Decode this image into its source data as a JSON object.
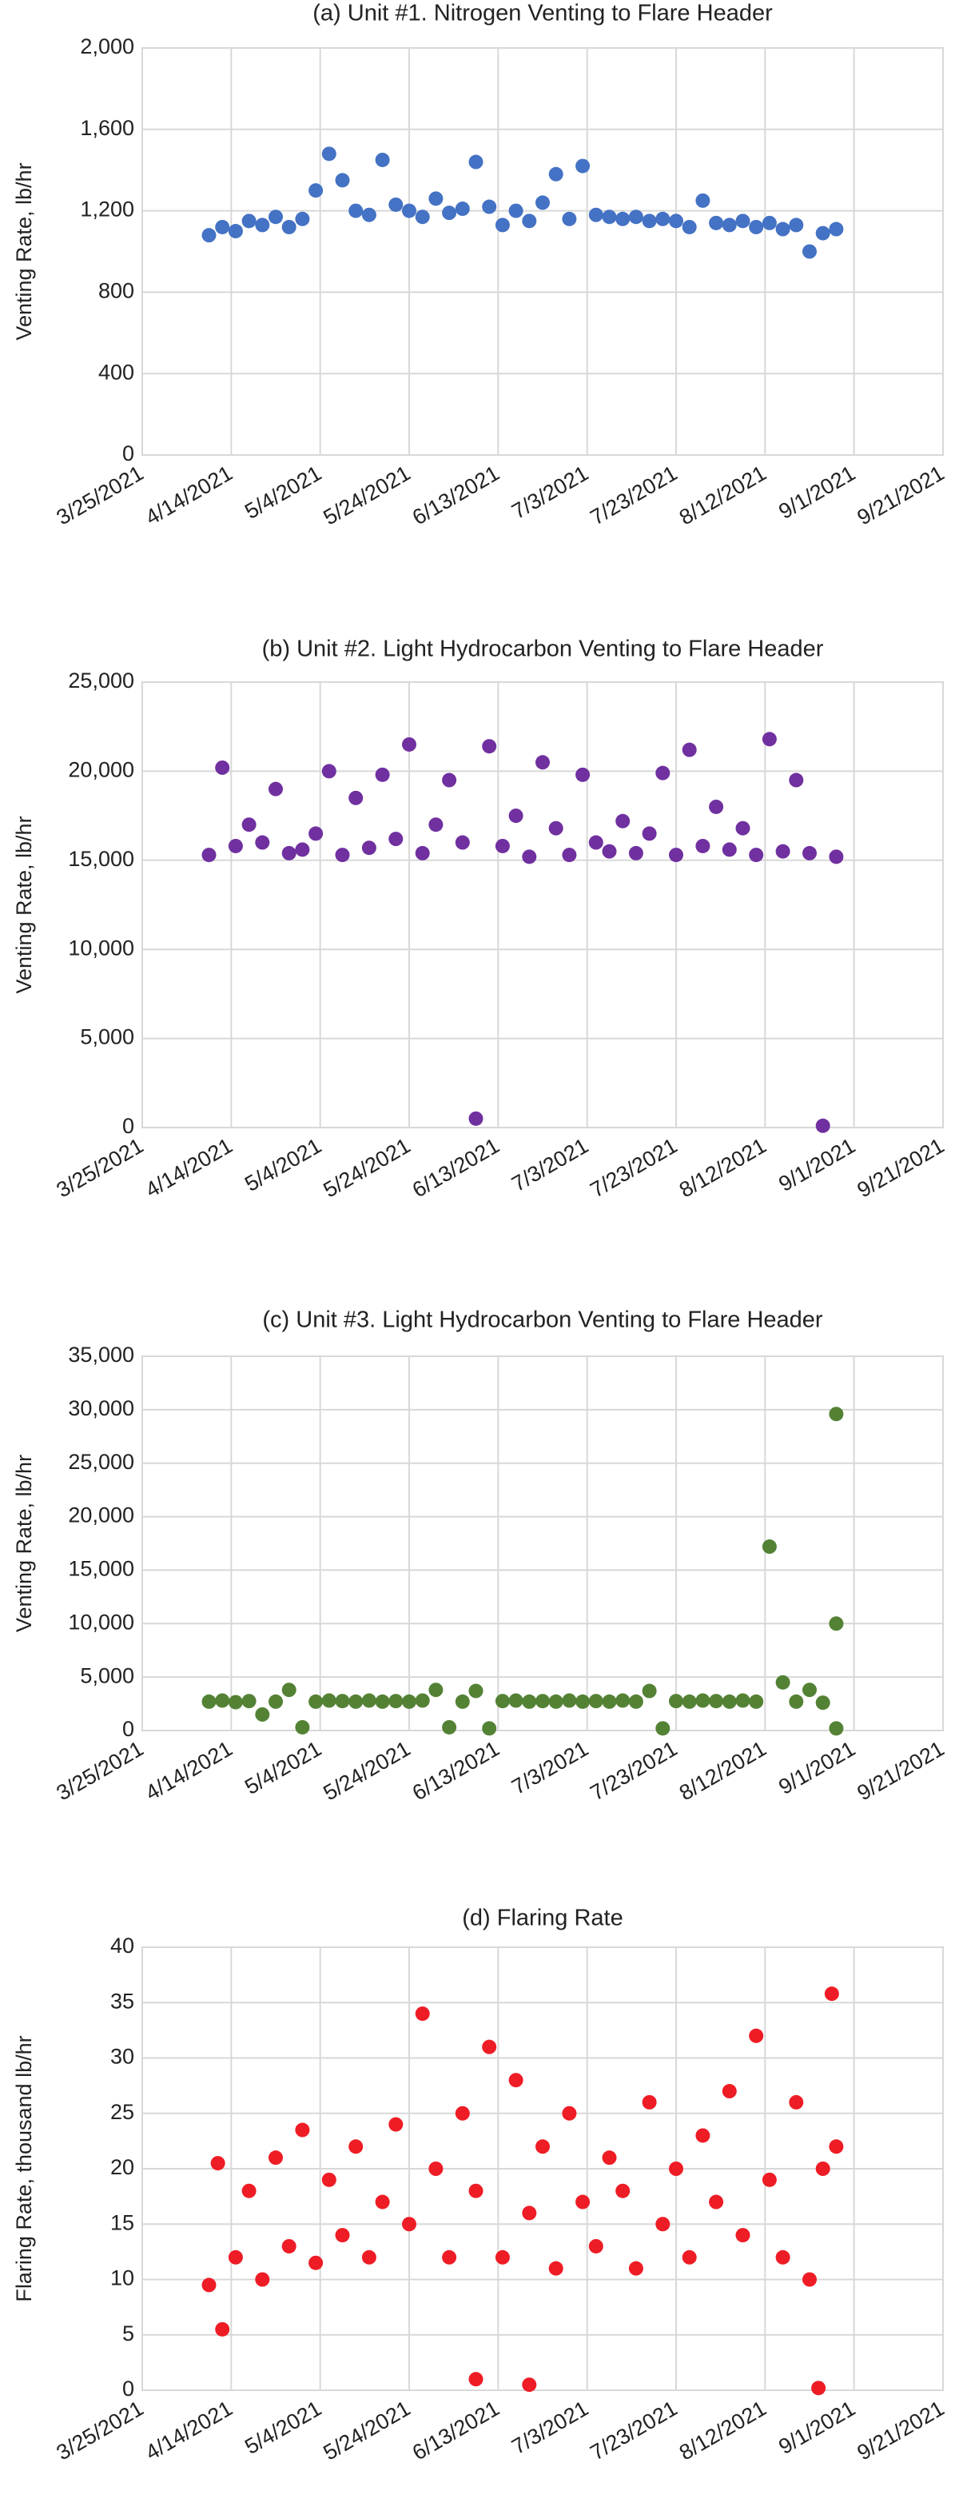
{
  "chart_data": [
    {
      "type": "scatter",
      "title": "(a) Unit #1. Nitrogen Venting to Flare Header",
      "y_label": "Venting Rate, lb/hr",
      "color": "#4472c4",
      "grid": true,
      "x": [
        "4/9/2021",
        "4/12/2021",
        "4/15/2021",
        "4/18/2021",
        "4/21/2021",
        "4/24/2021",
        "4/27/2021",
        "4/30/2021",
        "5/3/2021",
        "5/6/2021",
        "5/9/2021",
        "5/12/2021",
        "5/15/2021",
        "5/18/2021",
        "5/21/2021",
        "5/24/2021",
        "5/27/2021",
        "5/30/2021",
        "6/2/2021",
        "6/5/2021",
        "6/8/2021",
        "6/11/2021",
        "6/14/2021",
        "6/17/2021",
        "6/20/2021",
        "6/23/2021",
        "6/26/2021",
        "6/29/2021",
        "7/2/2021",
        "7/5/2021",
        "7/8/2021",
        "7/11/2021",
        "7/14/2021",
        "7/17/2021",
        "7/20/2021",
        "7/23/2021",
        "7/26/2021",
        "7/29/2021",
        "8/1/2021",
        "8/4/2021",
        "8/7/2021",
        "8/10/2021",
        "8/13/2021",
        "8/16/2021",
        "8/19/2021",
        "8/22/2021",
        "8/25/2021",
        "8/28/2021"
      ],
      "values": [
        1080,
        1120,
        1100,
        1150,
        1130,
        1170,
        1120,
        1160,
        1300,
        1480,
        1350,
        1200,
        1180,
        1450,
        1230,
        1200,
        1170,
        1260,
        1190,
        1210,
        1440,
        1220,
        1130,
        1200,
        1150,
        1240,
        1380,
        1160,
        1420,
        1180,
        1170,
        1160,
        1170,
        1150,
        1160,
        1150,
        1120,
        1250,
        1140,
        1130,
        1150,
        1120,
        1140,
        1110,
        1130,
        1000,
        1090,
        1110
      ],
      "xlim": [
        "3/25/2021",
        "9/21/2021"
      ],
      "xticks": [
        "3/25/2021",
        "4/14/2021",
        "5/4/2021",
        "5/24/2021",
        "6/13/2021",
        "7/3/2021",
        "7/23/2021",
        "8/12/2021",
        "9/1/2021",
        "9/21/2021"
      ],
      "ylim": [
        0,
        2000
      ],
      "yticks": [
        0,
        400,
        800,
        {
          "value": 1200,
          "label": "1,200"
        },
        {
          "value": 1600,
          "label": "1,600"
        },
        {
          "value": 2000,
          "label": "2,000"
        }
      ]
    },
    {
      "type": "scatter",
      "title": "(b) Unit #2. Light Hydrocarbon Venting to Flare Header",
      "y_label": "Venting Rate, lb/hr",
      "color": "#7030a0",
      "grid": true,
      "x": [
        "4/9/2021",
        "4/12/2021",
        "4/15/2021",
        "4/18/2021",
        "4/21/2021",
        "4/24/2021",
        "4/27/2021",
        "4/30/2021",
        "5/3/2021",
        "5/6/2021",
        "5/9/2021",
        "5/12/2021",
        "5/15/2021",
        "5/18/2021",
        "5/21/2021",
        "5/24/2021",
        "5/27/2021",
        "5/30/2021",
        "6/2/2021",
        "6/5/2021",
        "6/8/2021",
        "6/11/2021",
        "6/14/2021",
        "6/17/2021",
        "6/20/2021",
        "6/23/2021",
        "6/26/2021",
        "6/29/2021",
        "7/2/2021",
        "7/5/2021",
        "7/8/2021",
        "7/11/2021",
        "7/14/2021",
        "7/17/2021",
        "7/20/2021",
        "7/23/2021",
        "7/26/2021",
        "7/29/2021",
        "8/1/2021",
        "8/4/2021",
        "8/7/2021",
        "8/10/2021",
        "8/13/2021",
        "8/16/2021",
        "8/19/2021",
        "8/22/2021",
        "8/25/2021",
        "8/28/2021"
      ],
      "values": [
        15300,
        20200,
        15800,
        17000,
        16000,
        19000,
        15400,
        15600,
        16500,
        20000,
        15300,
        18500,
        15700,
        19800,
        16200,
        21500,
        15400,
        17000,
        19500,
        16000,
        500,
        21400,
        15800,
        17500,
        15200,
        20500,
        16800,
        15300,
        19800,
        16000,
        15500,
        17200,
        15400,
        16500,
        19900,
        15300,
        21200,
        15800,
        18000,
        15600,
        16800,
        15300,
        21800,
        15500,
        19500,
        15400,
        100,
        15200
      ],
      "xlim": [
        "3/25/2021",
        "9/21/2021"
      ],
      "xticks": [
        "3/25/2021",
        "4/14/2021",
        "5/4/2021",
        "5/24/2021",
        "6/13/2021",
        "7/3/2021",
        "7/23/2021",
        "8/12/2021",
        "9/1/2021",
        "9/21/2021"
      ],
      "ylim": [
        0,
        25000
      ],
      "yticks": [
        0,
        {
          "value": 5000,
          "label": "5,000"
        },
        {
          "value": 10000,
          "label": "10,000"
        },
        {
          "value": 15000,
          "label": "15,000"
        },
        {
          "value": 20000,
          "label": "20,000"
        },
        {
          "value": 25000,
          "label": "25,000"
        }
      ]
    },
    {
      "type": "scatter",
      "title": "(c) Unit #3. Light Hydrocarbon Venting to Flare Header",
      "y_label": "Venting Rate, lb/hr",
      "color": "#548235",
      "grid": true,
      "x": [
        "4/9/2021",
        "4/12/2021",
        "4/15/2021",
        "4/18/2021",
        "4/21/2021",
        "4/24/2021",
        "4/27/2021",
        "4/30/2021",
        "5/3/2021",
        "5/6/2021",
        "5/9/2021",
        "5/12/2021",
        "5/15/2021",
        "5/18/2021",
        "5/21/2021",
        "5/24/2021",
        "5/27/2021",
        "5/30/2021",
        "6/2/2021",
        "6/5/2021",
        "6/8/2021",
        "6/11/2021",
        "6/14/2021",
        "6/17/2021",
        "6/20/2021",
        "6/23/2021",
        "6/26/2021",
        "6/29/2021",
        "7/2/2021",
        "7/5/2021",
        "7/8/2021",
        "7/11/2021",
        "7/14/2021",
        "7/17/2021",
        "7/20/2021",
        "7/23/2021",
        "7/26/2021",
        "7/29/2021",
        "8/1/2021",
        "8/4/2021",
        "8/7/2021",
        "8/10/2021",
        "8/13/2021",
        "8/16/2021",
        "8/19/2021",
        "8/22/2021",
        "8/25/2021",
        "8/28/2021",
        "8/28/2021",
        "8/28/2021"
      ],
      "values": [
        2700,
        2800,
        2650,
        2750,
        1500,
        2700,
        3800,
        300,
        2700,
        2800,
        2750,
        2700,
        2800,
        2700,
        2750,
        2700,
        2800,
        3800,
        300,
        2700,
        3700,
        200,
        2750,
        2800,
        2700,
        2750,
        2700,
        2800,
        2700,
        2750,
        2700,
        2800,
        2700,
        3700,
        200,
        2750,
        2700,
        2800,
        2750,
        2700,
        2800,
        2700,
        17200,
        4500,
        2700,
        3800,
        2600,
        29600,
        10000,
        200
      ],
      "xlim": [
        "3/25/2021",
        "9/21/2021"
      ],
      "xticks": [
        "3/25/2021",
        "4/14/2021",
        "5/4/2021",
        "5/24/2021",
        "6/13/2021",
        "7/3/2021",
        "7/23/2021",
        "8/12/2021",
        "9/1/2021",
        "9/21/2021"
      ],
      "ylim": [
        0,
        35000
      ],
      "yticks": [
        0,
        {
          "value": 5000,
          "label": "5,000"
        },
        {
          "value": 10000,
          "label": "10,000"
        },
        {
          "value": 15000,
          "label": "15,000"
        },
        {
          "value": 20000,
          "label": "20,000"
        },
        {
          "value": 25000,
          "label": "25,000"
        },
        {
          "value": 30000,
          "label": "30,000"
        },
        {
          "value": 35000,
          "label": "35,000"
        }
      ]
    },
    {
      "type": "scatter",
      "title": "(d) Flaring Rate",
      "y_label": "Flaring Rate, thousand lb/hr",
      "color": "#ee1c25",
      "grid": true,
      "x": [
        "4/9/2021",
        "4/11/2021",
        "4/12/2021",
        "4/15/2021",
        "4/18/2021",
        "4/21/2021",
        "4/24/2021",
        "4/27/2021",
        "4/30/2021",
        "5/3/2021",
        "5/6/2021",
        "5/9/2021",
        "5/12/2021",
        "5/15/2021",
        "5/18/2021",
        "5/21/2021",
        "5/24/2021",
        "5/27/2021",
        "5/30/2021",
        "6/2/2021",
        "6/5/2021",
        "6/8/2021",
        "6/8/2021",
        "6/11/2021",
        "6/14/2021",
        "6/17/2021",
        "6/20/2021",
        "6/20/2021",
        "6/23/2021",
        "6/26/2021",
        "6/29/2021",
        "7/2/2021",
        "7/5/2021",
        "7/8/2021",
        "7/11/2021",
        "7/14/2021",
        "7/17/2021",
        "7/20/2021",
        "7/23/2021",
        "7/26/2021",
        "7/29/2021",
        "8/1/2021",
        "8/4/2021",
        "8/7/2021",
        "8/10/2021",
        "8/13/2021",
        "8/16/2021",
        "8/19/2021",
        "8/22/2021",
        "8/24/2021",
        "8/25/2021",
        "8/27/2021",
        "8/28/2021"
      ],
      "values": [
        9.5,
        20.5,
        5.5,
        12,
        18,
        10,
        21,
        13,
        23.5,
        11.5,
        19,
        14,
        22,
        12,
        17,
        24,
        15,
        34,
        20,
        12,
        25,
        1,
        18,
        31,
        12,
        28,
        0.5,
        16,
        22,
        11,
        25,
        17,
        13,
        21,
        18,
        11,
        26,
        15,
        20,
        12,
        23,
        17,
        27,
        14,
        32,
        19,
        12,
        26,
        10,
        0.2,
        20,
        35.8,
        22
      ],
      "xlim": [
        "3/25/2021",
        "9/21/2021"
      ],
      "xticks": [
        "3/25/2021",
        "4/14/2021",
        "5/4/2021",
        "5/24/2021",
        "6/13/2021",
        "7/3/2021",
        "7/23/2021",
        "8/12/2021",
        "9/1/2021",
        "9/21/2021"
      ],
      "ylim": [
        0,
        40
      ],
      "yticks": [
        0,
        5,
        10,
        15,
        20,
        25,
        30,
        35,
        40
      ]
    }
  ]
}
